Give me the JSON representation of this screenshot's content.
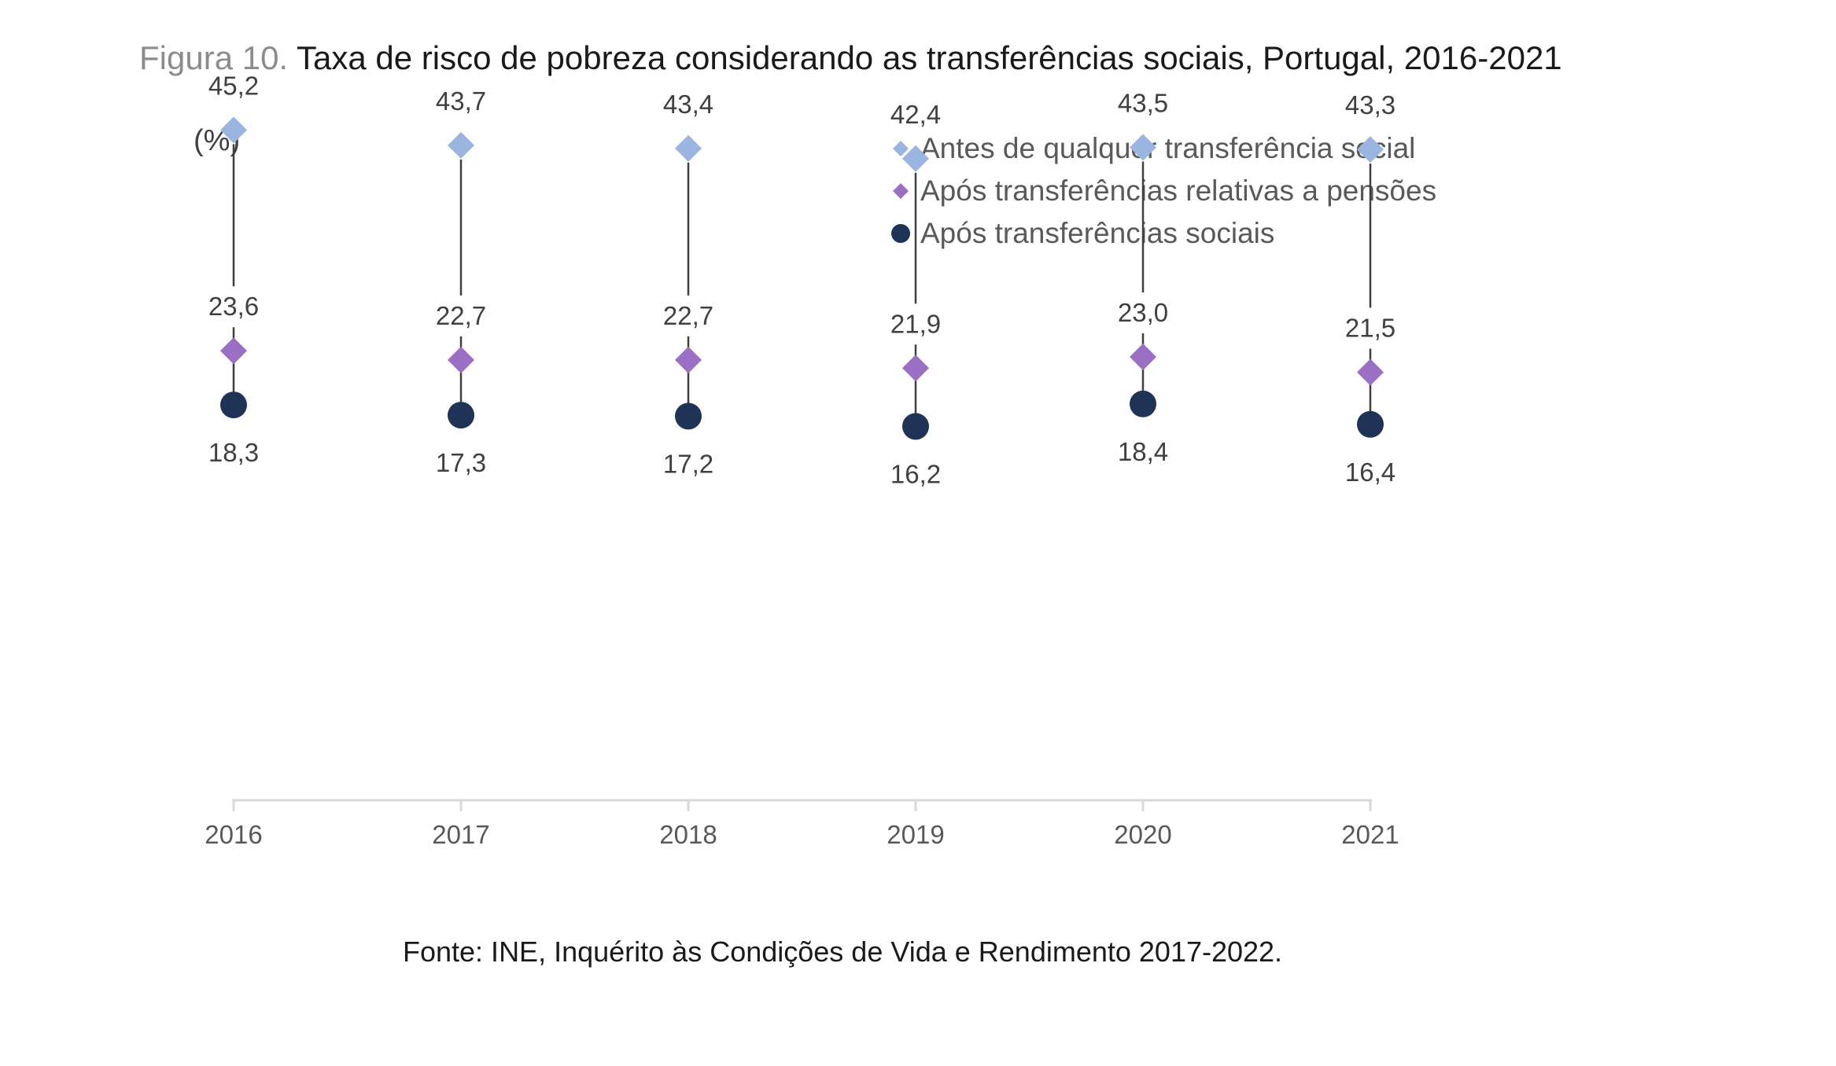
{
  "title": {
    "prefix": "Figura 10.",
    "text": "Taxa de risco de pobreza considerando as transferências sociais, Portugal, 2016-2021"
  },
  "source": "Fonte: INE, Inquérito às Condições de Vida e Rendimento 2017-2022.",
  "colors": {
    "before": "#9ab5e0",
    "pensions": "#9a6fc4",
    "after": "#1f3356",
    "axis": "#d9d9d9",
    "connector": "#404040",
    "label": "#404040"
  },
  "chart_data": {
    "type": "scatter",
    "title": "Taxa de risco de pobreza considerando as transferências sociais, Portugal, 2016-2021",
    "ylabel": "(%)",
    "xlabel": "",
    "categories": [
      "2016",
      "2017",
      "2018",
      "2019",
      "2020",
      "2021"
    ],
    "ylim": [
      0,
      55
    ],
    "grid": false,
    "legend_position": "top-right",
    "decimal_separator": ",",
    "series": [
      {
        "name": "Antes de qualquer transferência social",
        "marker": "diamond",
        "color": "#9ab5e0",
        "values": [
          45.2,
          43.7,
          43.4,
          42.4,
          43.5,
          43.3
        ]
      },
      {
        "name": "Após transferências relativas a pensões",
        "marker": "diamond",
        "color": "#9a6fc4",
        "values": [
          23.6,
          22.7,
          22.7,
          21.9,
          23.0,
          21.5
        ]
      },
      {
        "name": "Após transferências sociais",
        "marker": "circle",
        "color": "#1f3356",
        "values": [
          18.3,
          17.3,
          17.2,
          16.2,
          18.4,
          16.4
        ]
      }
    ]
  }
}
